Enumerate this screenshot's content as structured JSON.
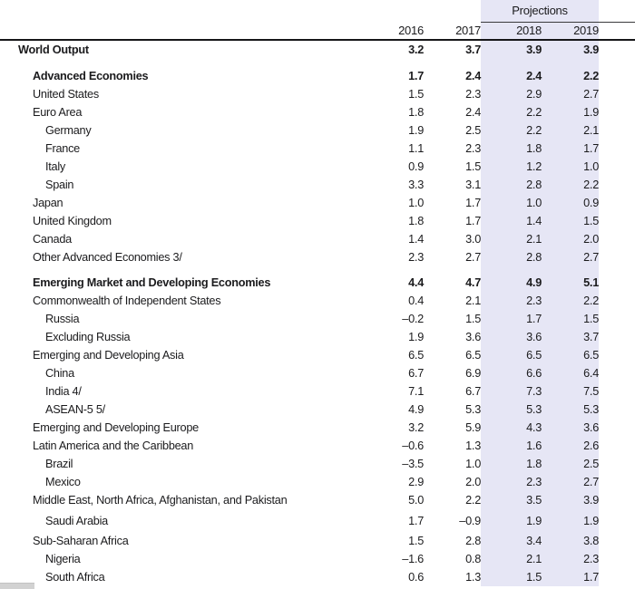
{
  "header": {
    "projections_label": "Projections",
    "years": [
      "2016",
      "2017",
      "2018",
      "2019"
    ]
  },
  "colors": {
    "band": "#e6e6f5",
    "text": "#1b1b1d",
    "thin_rule": "#3a3a3c",
    "thick_rule": "#161618"
  },
  "rows": [
    {
      "label": "World Output",
      "indent": 0,
      "bold": true,
      "space_before": 0,
      "values": [
        "3.2",
        "3.7",
        "3.9",
        "3.9"
      ]
    },
    {
      "label": "Advanced Economies",
      "indent": 1,
      "bold": true,
      "space_before": 10,
      "values": [
        "1.7",
        "2.4",
        "2.4",
        "2.2"
      ]
    },
    {
      "label": "United States",
      "indent": 1,
      "bold": false,
      "space_before": 0,
      "values": [
        "1.5",
        "2.3",
        "2.9",
        "2.7"
      ]
    },
    {
      "label": "Euro Area",
      "indent": 1,
      "bold": false,
      "space_before": 0,
      "values": [
        "1.8",
        "2.4",
        "2.2",
        "1.9"
      ]
    },
    {
      "label": "Germany",
      "indent": 2,
      "bold": false,
      "space_before": 0,
      "values": [
        "1.9",
        "2.5",
        "2.2",
        "2.1"
      ]
    },
    {
      "label": "France",
      "indent": 2,
      "bold": false,
      "space_before": 0,
      "values": [
        "1.1",
        "2.3",
        "1.8",
        "1.7"
      ]
    },
    {
      "label": "Italy",
      "indent": 2,
      "bold": false,
      "space_before": 0,
      "values": [
        "0.9",
        "1.5",
        "1.2",
        "1.0"
      ]
    },
    {
      "label": "Spain",
      "indent": 2,
      "bold": false,
      "space_before": 0,
      "values": [
        "3.3",
        "3.1",
        "2.8",
        "2.2"
      ]
    },
    {
      "label": "Japan",
      "indent": 1,
      "bold": false,
      "space_before": 0,
      "values": [
        "1.0",
        "1.7",
        "1.0",
        "0.9"
      ]
    },
    {
      "label": "United Kingdom",
      "indent": 1,
      "bold": false,
      "space_before": 0,
      "values": [
        "1.8",
        "1.7",
        "1.4",
        "1.5"
      ]
    },
    {
      "label": "Canada",
      "indent": 1,
      "bold": false,
      "space_before": 0,
      "values": [
        "1.4",
        "3.0",
        "2.1",
        "2.0"
      ]
    },
    {
      "label": "Other Advanced Economies 3/",
      "indent": 1,
      "bold": false,
      "space_before": 0,
      "values": [
        "2.3",
        "2.7",
        "2.8",
        "2.7"
      ]
    },
    {
      "label": "Emerging Market and Developing Economies",
      "indent": 1,
      "bold": true,
      "space_before": 8,
      "values": [
        "4.4",
        "4.7",
        "4.9",
        "5.1"
      ]
    },
    {
      "label": "Commonwealth of Independent States",
      "indent": 1,
      "bold": false,
      "space_before": 0,
      "values": [
        "0.4",
        "2.1",
        "2.3",
        "2.2"
      ]
    },
    {
      "label": "Russia",
      "indent": 2,
      "bold": false,
      "space_before": 0,
      "values": [
        "–0.2",
        "1.5",
        "1.7",
        "1.5"
      ]
    },
    {
      "label": "Excluding Russia",
      "indent": 2,
      "bold": false,
      "space_before": 0,
      "values": [
        "1.9",
        "3.6",
        "3.6",
        "3.7"
      ]
    },
    {
      "label": "Emerging and Developing Asia",
      "indent": 1,
      "bold": false,
      "space_before": 0,
      "values": [
        "6.5",
        "6.5",
        "6.5",
        "6.5"
      ]
    },
    {
      "label": "China",
      "indent": 2,
      "bold": false,
      "space_before": 0,
      "values": [
        "6.7",
        "6.9",
        "6.6",
        "6.4"
      ]
    },
    {
      "label": "India 4/",
      "indent": 2,
      "bold": false,
      "space_before": 0,
      "values": [
        "7.1",
        "6.7",
        "7.3",
        "7.5"
      ]
    },
    {
      "label": "ASEAN-5 5/",
      "indent": 2,
      "bold": false,
      "space_before": 0,
      "values": [
        "4.9",
        "5.3",
        "5.3",
        "5.3"
      ]
    },
    {
      "label": "Emerging and Developing Europe",
      "indent": 1,
      "bold": false,
      "space_before": 0,
      "values": [
        "3.2",
        "5.9",
        "4.3",
        "3.6"
      ]
    },
    {
      "label": "Latin America and the Caribbean",
      "indent": 1,
      "bold": false,
      "space_before": 0,
      "values": [
        "–0.6",
        "1.3",
        "1.6",
        "2.6"
      ]
    },
    {
      "label": "Brazil",
      "indent": 2,
      "bold": false,
      "space_before": 0,
      "values": [
        "–3.5",
        "1.0",
        "1.8",
        "2.5"
      ]
    },
    {
      "label": "Mexico",
      "indent": 2,
      "bold": false,
      "space_before": 0,
      "values": [
        "2.9",
        "2.0",
        "2.3",
        "2.7"
      ]
    },
    {
      "label": "Middle East, North Africa, Afghanistan, and Pakistan",
      "indent": 1,
      "bold": false,
      "space_before": 0,
      "values": [
        "5.0",
        "2.2",
        "3.5",
        "3.9"
      ]
    },
    {
      "label": "Saudi Arabia",
      "indent": 2,
      "bold": false,
      "space_before": 3,
      "values": [
        "1.7",
        "–0.9",
        "1.9",
        "1.9"
      ]
    },
    {
      "label": "Sub-Saharan Africa",
      "indent": 1,
      "bold": false,
      "space_before": 2,
      "values": [
        "1.5",
        "2.8",
        "3.4",
        "3.8"
      ]
    },
    {
      "label": "Nigeria",
      "indent": 2,
      "bold": false,
      "space_before": 0,
      "values": [
        "–1.6",
        "0.8",
        "2.1",
        "2.3"
      ]
    },
    {
      "label": "South Africa",
      "indent": 2,
      "bold": false,
      "space_before": 0,
      "values": [
        "0.6",
        "1.3",
        "1.5",
        "1.7"
      ]
    }
  ]
}
